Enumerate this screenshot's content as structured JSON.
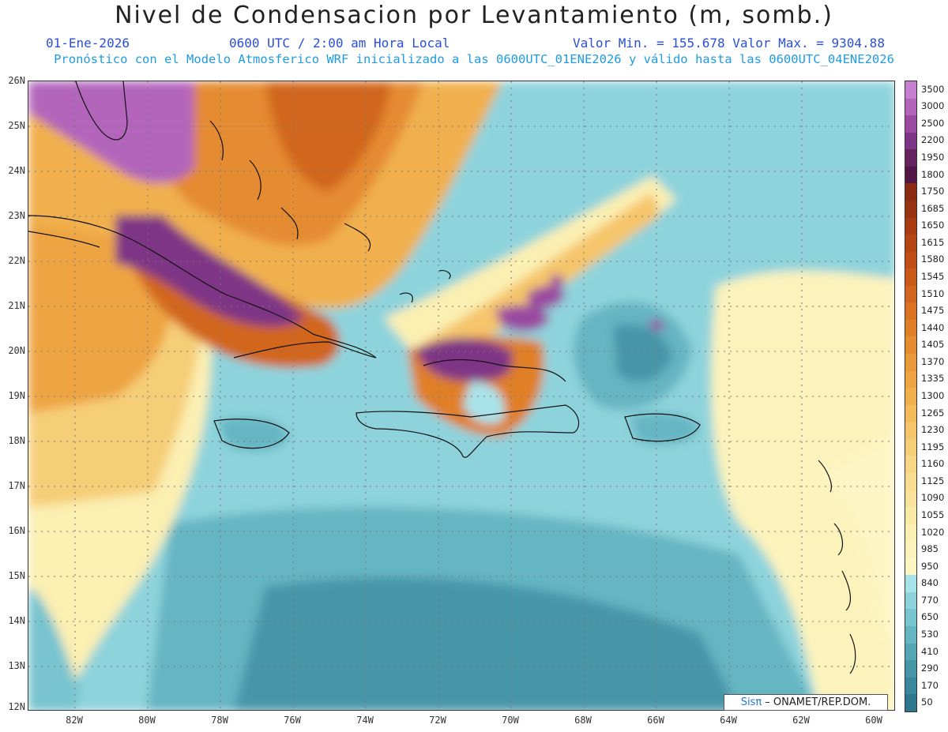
{
  "header": {
    "title": "Nivel de Condensacion por Levantamiento (m, somb.)",
    "date": "01-Ene-2026",
    "time": "0600 UTC / 2:00 am Hora Local",
    "minmax": "Valor Min. = 155.678  Valor Max. = 9304.88",
    "model_info": "Pronóstico con el Modelo Atmosferico WRF inicializado a las 0600UTC_01ENE2026 y válido hasta las  0600UTC_04ENE2026"
  },
  "map": {
    "lat_labels": [
      "26N",
      "25N",
      "24N",
      "23N",
      "22N",
      "21N",
      "20N",
      "19N",
      "18N",
      "17N",
      "16N",
      "15N",
      "14N",
      "13N",
      "12N"
    ],
    "lon_labels": [
      "82W",
      "80W",
      "78W",
      "76W",
      "74W",
      "72W",
      "70W",
      "68W",
      "66W",
      "64W",
      "62W",
      "60W"
    ]
  },
  "colorbar": {
    "levels": [
      "3500",
      "3000",
      "2500",
      "2200",
      "1950",
      "1800",
      "1750",
      "1685",
      "1650",
      "1615",
      "1580",
      "1545",
      "1510",
      "1475",
      "1440",
      "1405",
      "1370",
      "1335",
      "1300",
      "1265",
      "1230",
      "1195",
      "1160",
      "1125",
      "1090",
      "1055",
      "1020",
      "985",
      "950",
      "840",
      "770",
      "650",
      "530",
      "410",
      "290",
      "170",
      "50"
    ],
    "colors": [
      "#c77fcf",
      "#b265bb",
      "#9a4aa0",
      "#7f3585",
      "#66225f",
      "#521646",
      "#8a2b12",
      "#9a3312",
      "#a93c13",
      "#b54515",
      "#c04f17",
      "#c95a1a",
      "#d2661e",
      "#da7222",
      "#e07f28",
      "#e58b30",
      "#ea9838",
      "#eea442",
      "#f1b04e",
      "#f3bb5b",
      "#f5c56a",
      "#f6ce78",
      "#f7d686",
      "#f8dd92",
      "#f9e39d",
      "#faeaa8",
      "#fbefb2",
      "#fcf3bc",
      "#fdf6c4",
      "#a9e3ea",
      "#8ed3dc",
      "#78c4cf",
      "#65b5c2",
      "#55a6b5",
      "#4796a8",
      "#3b879b",
      "#2f778d"
    ]
  },
  "credit": {
    "sis": "Sisπ",
    "rest": " – ONAMET/REP.DOM."
  }
}
